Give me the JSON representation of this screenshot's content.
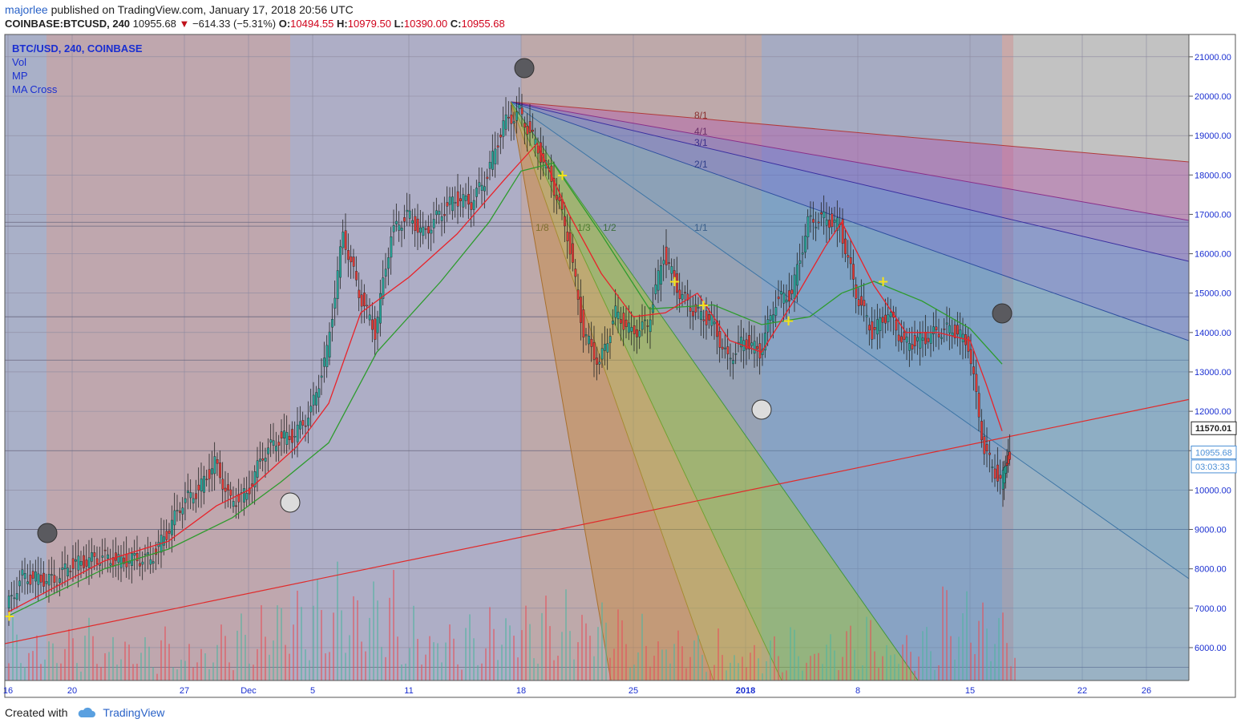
{
  "header": {
    "user": "majorlee",
    "published": "published on TradingView.com, January 17, 2018 20:56 UTC",
    "symbol": "COINBASE:BTCUSD, 240",
    "last": "10955.68",
    "change": "−614.33 (−5.31%)",
    "o_label": "O:",
    "o_value": "10494.55",
    "h_label": "H:",
    "h_value": "10979.50",
    "l_label": "L:",
    "l_value": "10390.00",
    "c_label": "C:",
    "c_value": "10955.68"
  },
  "legend": [
    "BTC/USD, 240, COINBASE",
    "Vol",
    "MP",
    "MA Cross"
  ],
  "footer": {
    "created": "Created with",
    "brand": "TradingView"
  },
  "colors": {
    "up": "#26a69a",
    "down": "#e53935",
    "ma_fast": "#e8232a",
    "ma_slow": "#2e9b2e",
    "trend": "#e02b2b",
    "axis_text": "#1a2fd1",
    "price_badge": "#4b8fd6"
  },
  "chart_data": {
    "type": "candlestick",
    "symbol": "BTC/USD",
    "interval": "240",
    "exchange": "COINBASE",
    "y_ticks": [
      6000,
      7000,
      8000,
      9000,
      10000,
      11000,
      12000,
      13000,
      14000,
      15000,
      16000,
      17000,
      18000,
      19000,
      20000,
      21000
    ],
    "y_tick_labels": [
      "6000.00",
      "7000.00",
      "8000.00",
      "9000.00",
      "10000.00",
      "11000.00",
      "12000.00",
      "13000.00",
      "14000.00",
      "15000.00",
      "16000.00",
      "17000.00",
      "18000.00",
      "19000.00",
      "20000.00",
      "21000.00"
    ],
    "x_ticks": [
      {
        "label": "16",
        "day": 0
      },
      {
        "label": "20",
        "day": 4
      },
      {
        "label": "27",
        "day": 11
      },
      {
        "label": "Dec",
        "day": 15
      },
      {
        "label": "5",
        "day": 19
      },
      {
        "label": "11",
        "day": 25
      },
      {
        "label": "18",
        "day": 32
      },
      {
        "label": "25",
        "day": 39
      },
      {
        "label": "2018",
        "day": 46
      },
      {
        "label": "8",
        "day": 53
      },
      {
        "label": "15",
        "day": 60
      },
      {
        "label": "22",
        "day": 67
      },
      {
        "label": "26",
        "day": 71
      }
    ],
    "price_marks": [
      {
        "label": "11570.01",
        "value": 11570.01,
        "color": "#222222"
      },
      {
        "label": "10955.68",
        "value": 10955.68,
        "color": "#4b8fd6"
      },
      {
        "label": "03:03:33",
        "value": 10600,
        "color": "#4b8fd6"
      }
    ],
    "fan_labels": [
      "8/1",
      "4/1",
      "3/1",
      "2/1",
      "1/1",
      "1/2",
      "1/3",
      "1/8"
    ],
    "price_path": [
      [
        0,
        7000
      ],
      [
        1,
        7800
      ],
      [
        2,
        7750
      ],
      [
        3,
        7700
      ],
      [
        4,
        8100
      ],
      [
        5,
        8200
      ],
      [
        6,
        8300
      ],
      [
        7,
        8200
      ],
      [
        8,
        8250
      ],
      [
        9,
        8250
      ],
      [
        10,
        8900
      ],
      [
        11,
        9700
      ],
      [
        12,
        10000
      ],
      [
        13,
        10700
      ],
      [
        14,
        9700
      ],
      [
        15,
        9900
      ],
      [
        16,
        10900
      ],
      [
        17,
        11300
      ],
      [
        18,
        11400
      ],
      [
        19,
        12000
      ],
      [
        20,
        13500
      ],
      [
        21,
        16500
      ],
      [
        22,
        15000
      ],
      [
        23,
        14000
      ],
      [
        24,
        16500
      ],
      [
        25,
        17000
      ],
      [
        26,
        16500
      ],
      [
        27,
        17000
      ],
      [
        28,
        17400
      ],
      [
        29,
        17300
      ],
      [
        30,
        18000
      ],
      [
        31,
        19300
      ],
      [
        32,
        19600
      ],
      [
        33,
        18800
      ],
      [
        34,
        17900
      ],
      [
        35,
        16500
      ],
      [
        36,
        14000
      ],
      [
        37,
        13200
      ],
      [
        38,
        14500
      ],
      [
        39,
        14000
      ],
      [
        40,
        14200
      ],
      [
        41,
        16000
      ],
      [
        42,
        15000
      ],
      [
        43,
        14500
      ],
      [
        44,
        14300
      ],
      [
        45,
        13300
      ],
      [
        46,
        13800
      ],
      [
        47,
        13500
      ],
      [
        48,
        14800
      ],
      [
        49,
        15000
      ],
      [
        50,
        16800
      ],
      [
        51,
        16900
      ],
      [
        52,
        16700
      ],
      [
        53,
        15000
      ],
      [
        54,
        14000
      ],
      [
        55,
        14500
      ],
      [
        56,
        13700
      ],
      [
        57,
        13800
      ],
      [
        58,
        14000
      ],
      [
        59,
        14100
      ],
      [
        60,
        13700
      ],
      [
        61,
        11000
      ],
      [
        62,
        10200
      ],
      [
        62.5,
        10955
      ]
    ],
    "ma_fast": [
      [
        0,
        6900
      ],
      [
        6,
        8200
      ],
      [
        10,
        8700
      ],
      [
        13,
        9600
      ],
      [
        15,
        10000
      ],
      [
        18,
        11100
      ],
      [
        20,
        12200
      ],
      [
        22,
        14500
      ],
      [
        25,
        15400
      ],
      [
        28,
        16500
      ],
      [
        31,
        17900
      ],
      [
        33,
        18800
      ],
      [
        35,
        17000
      ],
      [
        37,
        15500
      ],
      [
        39,
        14400
      ],
      [
        41,
        14500
      ],
      [
        43,
        15000
      ],
      [
        45,
        13800
      ],
      [
        47,
        13500
      ],
      [
        49,
        14800
      ],
      [
        51,
        16200
      ],
      [
        52,
        16800
      ],
      [
        54,
        15200
      ],
      [
        56,
        14000
      ],
      [
        58,
        14000
      ],
      [
        60,
        13800
      ],
      [
        61,
        12700
      ],
      [
        62,
        11500
      ]
    ],
    "ma_slow": [
      [
        0,
        6800
      ],
      [
        6,
        8000
      ],
      [
        10,
        8500
      ],
      [
        14,
        9300
      ],
      [
        17,
        10200
      ],
      [
        20,
        11200
      ],
      [
        23,
        13500
      ],
      [
        27,
        15300
      ],
      [
        30,
        16800
      ],
      [
        32,
        18100
      ],
      [
        34,
        18300
      ],
      [
        37,
        16500
      ],
      [
        40,
        14600
      ],
      [
        44,
        14700
      ],
      [
        47,
        14200
      ],
      [
        50,
        14400
      ],
      [
        52,
        15000
      ],
      [
        54,
        15300
      ],
      [
        57,
        14800
      ],
      [
        60,
        14100
      ],
      [
        62,
        13200
      ]
    ],
    "volume": [
      {
        "day": 5,
        "value": 1400
      },
      {
        "day": 11,
        "value": 1000
      },
      {
        "day": 14,
        "value": 1700
      },
      {
        "day": 18,
        "value": 3500
      },
      {
        "day": 22,
        "value": 4000
      },
      {
        "day": 26,
        "value": 1800
      },
      {
        "day": 34,
        "value": 2800
      },
      {
        "day": 36,
        "value": 3000
      },
      {
        "day": 40,
        "value": 1600
      },
      {
        "day": 45,
        "value": 900
      },
      {
        "day": 55,
        "value": 1500
      },
      {
        "day": 61,
        "value": 3200
      },
      {
        "day": 62,
        "value": 2300
      }
    ]
  }
}
